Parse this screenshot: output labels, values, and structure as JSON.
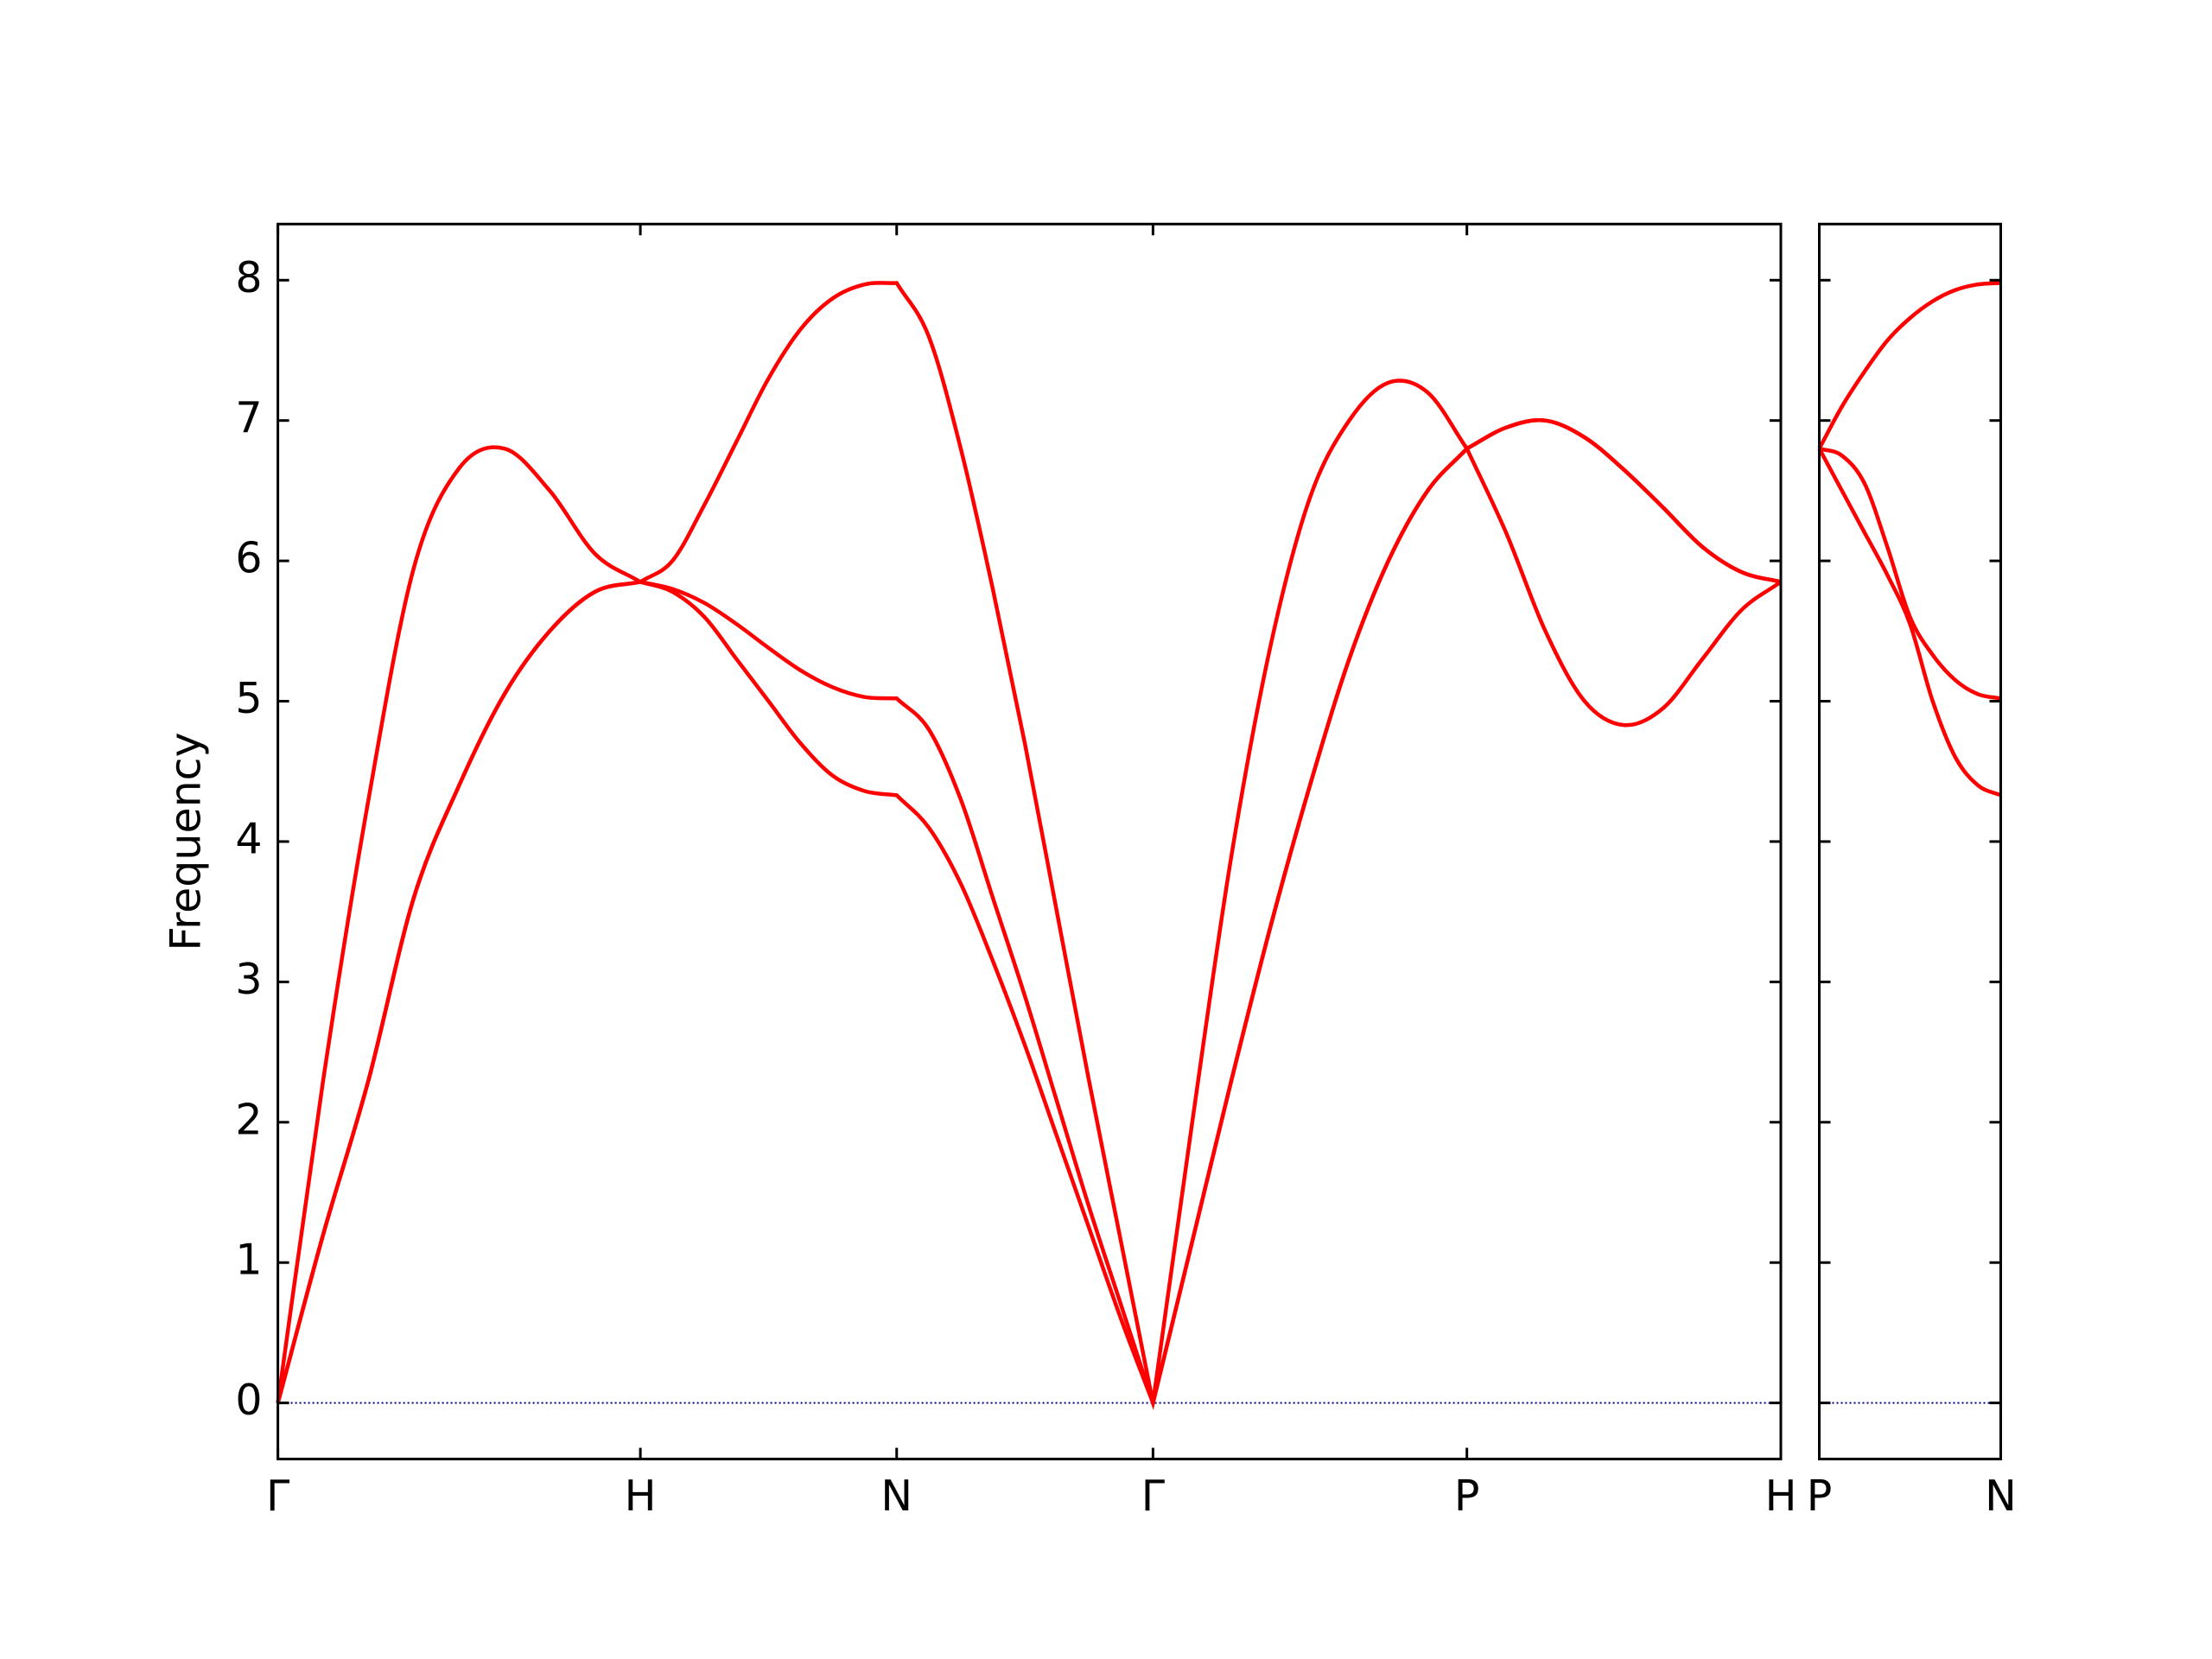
{
  "chart_data": [
    {
      "type": "line",
      "ylabel": "Frequency",
      "x": [
        0,
        0.125,
        0.25,
        0.375,
        0.5,
        0.625,
        0.75,
        0.875,
        1,
        1.0884,
        1.1768,
        1.2652,
        1.3536,
        1.4419,
        1.5303,
        1.6187,
        1.7071,
        1.7955,
        1.8839,
        1.9723,
        2.0607,
        2.149,
        2.2374,
        2.3258,
        2.4142,
        2.5225,
        2.6307,
        2.739,
        2.8472,
        2.9555,
        3.0637,
        3.172,
        3.2802,
        3.3885,
        3.4967,
        3.605,
        3.7133,
        3.8215,
        3.9298,
        4.038,
        4.1463
      ],
      "series": [
        {
          "color": "#ff0000",
          "values": [
            0,
            1.2,
            2.3,
            3.6,
            4.4,
            5.05,
            5.5,
            5.78,
            5.85,
            5.78,
            5.6,
            5.3,
            5.0,
            4.7,
            4.47,
            4.36,
            4.33,
            4.1,
            3.7,
            3.15,
            2.55,
            1.9,
            1.25,
            0.6,
            0,
            1.15,
            2.3,
            3.4,
            4.4,
            5.3,
            6.0,
            6.5,
            6.8,
            6.2,
            5.5,
            5.0,
            4.83,
            4.95,
            5.3,
            5.65,
            5.85
          ]
        },
        {
          "color": "#ff0000",
          "values": [
            0,
            1.2,
            2.3,
            3.6,
            4.4,
            5.05,
            5.5,
            5.78,
            5.85,
            5.8,
            5.7,
            5.55,
            5.38,
            5.22,
            5.1,
            5.03,
            5.02,
            4.8,
            4.3,
            3.6,
            2.9,
            2.15,
            1.4,
            0.7,
            0,
            1.15,
            2.3,
            3.4,
            4.4,
            5.3,
            6.0,
            6.5,
            6.8,
            6.95,
            7.0,
            6.88,
            6.65,
            6.38,
            6.1,
            5.92,
            5.85
          ]
        },
        {
          "color": "#ff0000",
          "values": [
            0,
            2.3,
            4.3,
            5.95,
            6.66,
            6.8,
            6.5,
            6.05,
            5.85,
            6.0,
            6.4,
            6.85,
            7.3,
            7.65,
            7.87,
            7.97,
            7.98,
            7.6,
            6.8,
            5.8,
            4.7,
            3.5,
            2.3,
            1.15,
            0,
            2.0,
            3.9,
            5.4,
            6.45,
            7.0,
            7.27,
            7.2,
            6.8,
            6.95,
            7.0,
            6.88,
            6.65,
            6.38,
            6.1,
            5.92,
            5.85
          ]
        }
      ],
      "xlim": [
        0,
        4.1463
      ],
      "xticks": [
        {
          "value": 0,
          "label": "Γ"
        },
        {
          "value": 1,
          "label": "H"
        },
        {
          "value": 1.7071,
          "label": "N"
        },
        {
          "value": 2.4142,
          "label": "Γ"
        },
        {
          "value": 3.2802,
          "label": "P"
        },
        {
          "value": 4.1463,
          "label": "H"
        }
      ],
      "ylim": [
        -0.4,
        8.4
      ],
      "yticks": [
        0,
        1,
        2,
        3,
        4,
        5,
        6,
        7,
        8
      ],
      "ytick_labels": true,
      "hline": 0,
      "hline_color": "#00008b"
    },
    {
      "type": "line",
      "x": [
        0,
        0.0625,
        0.125,
        0.1875,
        0.25,
        0.3125,
        0.375,
        0.4375,
        0.5
      ],
      "series": [
        {
          "color": "#ff0000",
          "values": [
            6.8,
            6.5,
            6.2,
            5.9,
            5.55,
            5.0,
            4.6,
            4.4,
            4.33
          ]
        },
        {
          "color": "#ff0000",
          "values": [
            6.8,
            6.75,
            6.55,
            6.1,
            5.6,
            5.33,
            5.15,
            5.05,
            5.02
          ]
        },
        {
          "color": "#ff0000",
          "values": [
            6.8,
            7.1,
            7.35,
            7.57,
            7.73,
            7.85,
            7.93,
            7.97,
            7.98
          ]
        }
      ],
      "xlim": [
        0,
        0.5
      ],
      "xticks": [
        {
          "value": 0,
          "label": "P"
        },
        {
          "value": 0.5,
          "label": "N"
        }
      ],
      "ylim": [
        -0.4,
        8.4
      ],
      "yticks": [
        0,
        1,
        2,
        3,
        4,
        5,
        6,
        7,
        8
      ],
      "ytick_labels": false,
      "hline": 0,
      "hline_color": "#00008b"
    }
  ]
}
